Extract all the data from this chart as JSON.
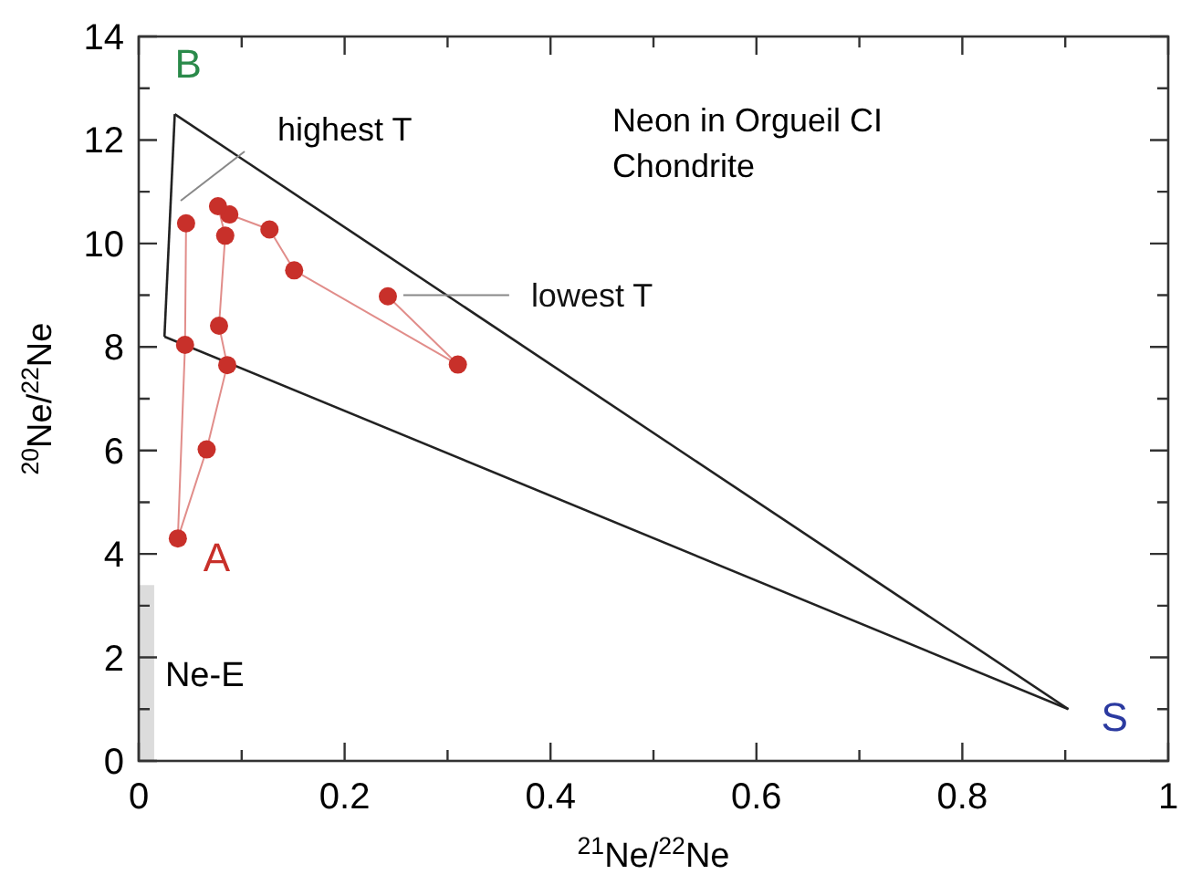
{
  "chart_data": {
    "type": "line",
    "title": "Neon in Orgueil CI Chondrite",
    "xlabel": "$^{21}$Ne/$^{22}$Ne",
    "ylabel": "$^{20}$Ne/$^{22}$Ne",
    "xlim": [
      0,
      1
    ],
    "ylim": [
      0,
      14
    ],
    "xticks": [
      0,
      {
        "value": 0.1,
        "label": null
      },
      0.2,
      {
        "value": 0.3,
        "label": null
      },
      0.4,
      {
        "value": 0.5,
        "label": null
      },
      0.6,
      {
        "value": 0.7,
        "label": null
      },
      0.8,
      {
        "value": 0.9,
        "label": null
      },
      1
    ],
    "yticks": [
      0,
      {
        "value": 1,
        "label": null
      },
      2,
      {
        "value": 3,
        "label": null
      },
      4,
      {
        "value": 5,
        "label": null
      },
      6,
      {
        "value": 7,
        "label": null
      },
      8,
      {
        "value": 9,
        "label": null
      },
      10,
      {
        "value": 11,
        "label": null
      },
      12,
      {
        "value": 13,
        "label": null
      },
      14
    ],
    "grid": false,
    "legend": false,
    "series": [
      {
        "type": "area",
        "name": "Ne-E",
        "color": "#dcdcdc",
        "x": [
          0,
          0.015
        ],
        "values": [
          3.4,
          3.4
        ]
      },
      {
        "color": "#222222",
        "marker": "none",
        "x": [
          0.025,
          0.035
        ],
        "values": [
          8.2,
          12.5
        ]
      },
      {
        "color": "#222222",
        "marker": "none",
        "x": [
          0.035,
          0.903
        ],
        "values": [
          12.5,
          1.0
        ]
      },
      {
        "color": "#222222",
        "marker": "none",
        "x": [
          0.025,
          0.903
        ],
        "values": [
          8.2,
          1.0
        ]
      },
      {
        "color": "#c8302a",
        "marker": "circle",
        "x": [
          0.242,
          0.31,
          0.151,
          0.127,
          0.088,
          0.077,
          0.084,
          0.078,
          0.086,
          0.066,
          0.038,
          0.045,
          0.046
        ],
        "values": [
          8.98,
          7.66,
          9.48,
          10.27,
          10.56,
          10.72,
          10.15,
          8.41,
          7.65,
          6.02,
          4.3,
          8.04,
          10.39
        ]
      }
    ],
    "annotations": [
      "highest T",
      {
        "text": "lowest T",
        "x": 0.257,
        "y": 9.0
      },
      {
        "text": "A",
        "x": 0.038,
        "y": 4.3
      },
      {
        "text": "B",
        "x": 0.035,
        "y": 12.5
      },
      {
        "text": "S",
        "x": 0.903,
        "y": 1.0
      }
    ]
  }
}
